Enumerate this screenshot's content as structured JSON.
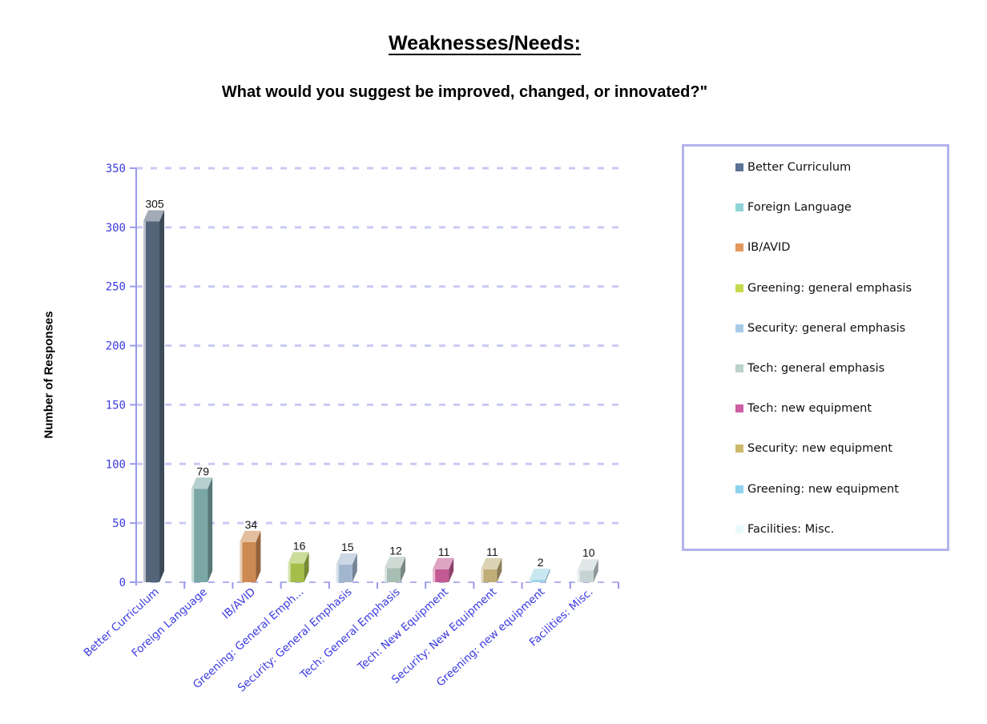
{
  "title": "Weaknesses/Needs:",
  "subtitle": "What would you suggest be improved, changed, or innovated?\"",
  "chart_data": {
    "type": "bar",
    "ylabel": "Number of Responses",
    "xlabel": "",
    "ylim": [
      0,
      350
    ],
    "yticks": [
      0,
      50,
      100,
      150,
      200,
      250,
      300,
      350
    ],
    "grid": true,
    "legend_position": "right",
    "categories": [
      "Better Curriculum",
      "Foreign Language",
      "IB/AVID",
      "Greening: General Emph...",
      "Security: General Emphasis",
      "Tech: General Emphasis",
      "Tech: New Equipment",
      "Security: New Equipment",
      "Greening: new equipment",
      "Facilities: Misc."
    ],
    "values": [
      305,
      79,
      34,
      16,
      15,
      12,
      11,
      11,
      2,
      10
    ],
    "colors": [
      "#54657a",
      "#7aa6a6",
      "#cc8a52",
      "#a3bf4a",
      "#a2b7cf",
      "#a8bdb3",
      "#c45a94",
      "#bfae78",
      "#9fd5e6",
      "#c6d3d3"
    ],
    "legend": [
      {
        "label": "Better Curriculum",
        "color": "#5b7394"
      },
      {
        "label": "Foreign Language",
        "color": "#8fd3d9"
      },
      {
        "label": "IB/AVID",
        "color": "#e19a5c"
      },
      {
        "label": "Greening: general emphasis",
        "color": "#c5d94a"
      },
      {
        "label": "Security: general emphasis",
        "color": "#aacbe8"
      },
      {
        "label": "Tech: general emphasis",
        "color": "#bcd3c8"
      },
      {
        "label": "Tech: new equipment",
        "color": "#cf5fa3"
      },
      {
        "label": "Security: new equipment",
        "color": "#cdb96a"
      },
      {
        "label": "Greening: new equipment",
        "color": "#8fd2f0"
      },
      {
        "label": "Facilities: Misc.",
        "color": "#e8f9fb"
      }
    ]
  }
}
